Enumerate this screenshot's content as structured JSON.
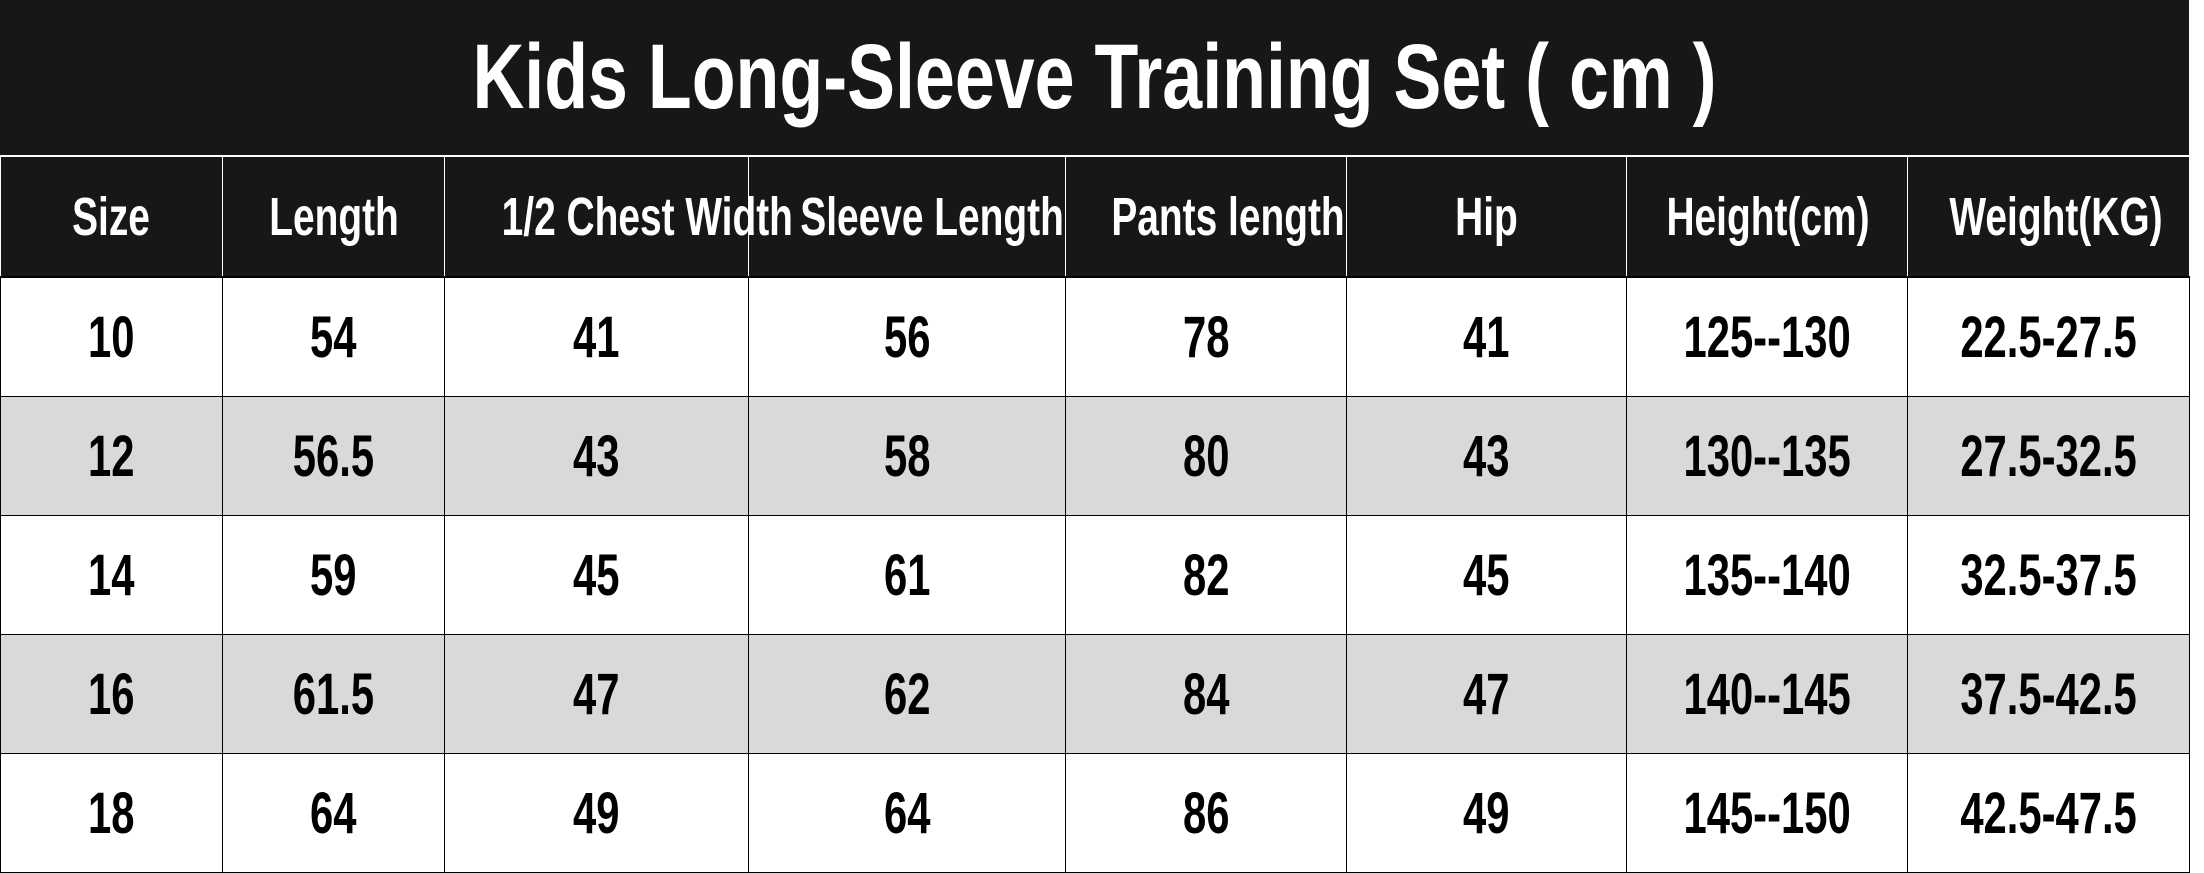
{
  "title": "Kids Long-Sleeve Training Set ( cm )",
  "headers": [
    "Size",
    "Length",
    "1/2 Chest Width",
    "Sleeve Length",
    "Pants length",
    "Hip",
    "Height(cm)",
    "Weight(KG)"
  ],
  "rows": [
    [
      "10",
      "54",
      "41",
      "56",
      "78",
      "41",
      "125--130",
      "22.5-27.5"
    ],
    [
      "12",
      "56.5",
      "43",
      "58",
      "80",
      "43",
      "130--135",
      "27.5-32.5"
    ],
    [
      "14",
      "59",
      "45",
      "61",
      "82",
      "45",
      "135--140",
      "32.5-37.5"
    ],
    [
      "16",
      "61.5",
      "47",
      "62",
      "84",
      "47",
      "140--145",
      "37.5-42.5"
    ],
    [
      "18",
      "64",
      "49",
      "64",
      "86",
      "49",
      "145--150",
      "42.5-47.5"
    ]
  ],
  "colors": {
    "header_bg": "#171717",
    "alt_row_bg": "#d9d9d9"
  }
}
